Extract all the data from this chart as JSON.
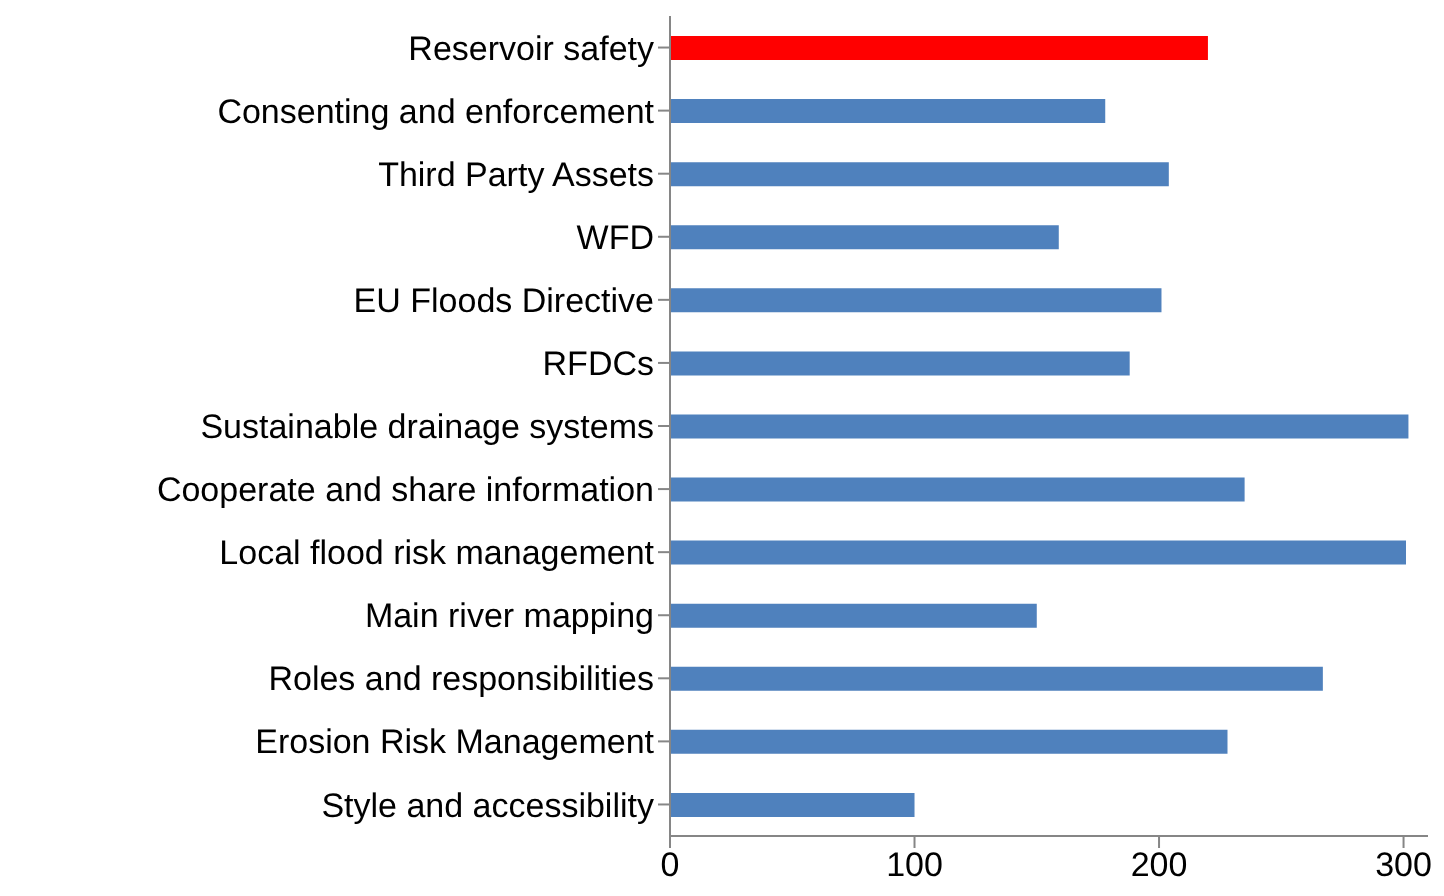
{
  "chart_data": {
    "type": "bar",
    "orientation": "horizontal",
    "categories": [
      "Reservoir safety",
      "Consenting and enforcement",
      "Third Party Assets",
      "WFD",
      "EU Floods Directive",
      "RFDCs",
      "Sustainable drainage systems",
      "Cooperate and share information",
      "Local flood risk management",
      "Main river mapping",
      "Roles and responsibilities",
      "Erosion Risk Management",
      "Style and accessibility"
    ],
    "values": [
      220,
      178,
      204,
      159,
      201,
      188,
      302,
      235,
      301,
      150,
      267,
      228,
      100
    ],
    "colors": [
      "#ff0000",
      "#4f81bd",
      "#4f81bd",
      "#4f81bd",
      "#4f81bd",
      "#4f81bd",
      "#4f81bd",
      "#4f81bd",
      "#4f81bd",
      "#4f81bd",
      "#4f81bd",
      "#4f81bd",
      "#4f81bd"
    ],
    "xlim": [
      0,
      310
    ],
    "xticks": [
      0,
      100,
      200,
      300
    ],
    "grid": false,
    "legend": false
  }
}
